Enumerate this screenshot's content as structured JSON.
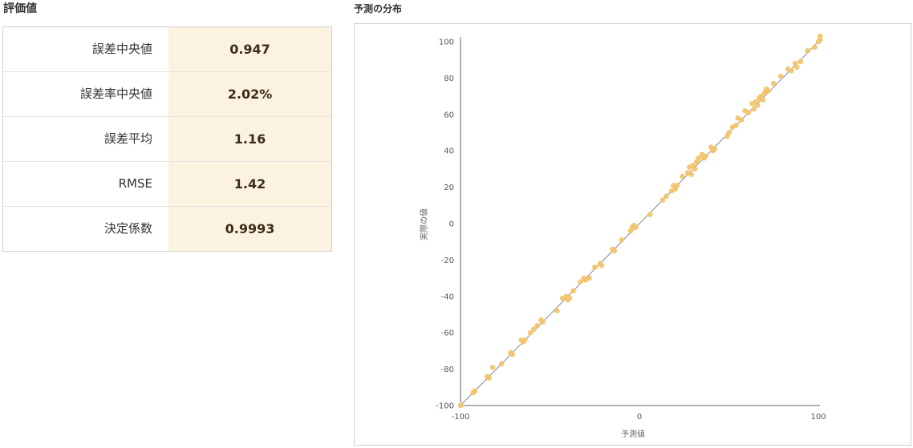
{
  "metrics": {
    "title": "評価値",
    "rows": [
      {
        "label": "誤差中央値",
        "value": "0.947"
      },
      {
        "label": "誤差率中央値",
        "value": "2.02%"
      },
      {
        "label": "誤差平均",
        "value": "1.16"
      },
      {
        "label": "RMSE",
        "value": "1.42"
      },
      {
        "label": "決定係数",
        "value": "0.9993"
      }
    ]
  },
  "colors": {
    "point": "#f2c46d",
    "value_bg": "#fcf2e1",
    "line": "#888888",
    "axis": "#666666"
  },
  "chart_data": {
    "type": "scatter",
    "title": "予測の分布",
    "xlabel": "予測値",
    "ylabel": "実際の値",
    "xlim": [
      -100,
      100
    ],
    "ylim": [
      -100,
      100
    ],
    "xticks": [
      "-100",
      "0",
      "100"
    ],
    "yticks": [
      "100",
      "80",
      "60",
      "40",
      "20",
      "0",
      "-20",
      "-40",
      "-60",
      "-80",
      "-100"
    ],
    "grid": false,
    "reference_line": {
      "from": [
        -100,
        -100
      ],
      "to": [
        100,
        100
      ]
    },
    "series": [
      {
        "points": [
          [
            -100,
            -100
          ],
          [
            -93,
            -93
          ],
          [
            -92,
            -92
          ],
          [
            -85,
            -84
          ],
          [
            -84,
            -85
          ],
          [
            -82,
            -79
          ],
          [
            -77,
            -77
          ],
          [
            -72,
            -71
          ],
          [
            -71,
            -72
          ],
          [
            -66,
            -64
          ],
          [
            -65,
            -65
          ],
          [
            -64,
            -64
          ],
          [
            -61,
            -60
          ],
          [
            -59,
            -58
          ],
          [
            -57,
            -56
          ],
          [
            -55,
            -53
          ],
          [
            -54,
            -54
          ],
          [
            -46,
            -48
          ],
          [
            -43,
            -41
          ],
          [
            -41,
            -40
          ],
          [
            -40,
            -42
          ],
          [
            -39,
            -41
          ],
          [
            -37,
            -37
          ],
          [
            -33,
            -32
          ],
          [
            -31,
            -30
          ],
          [
            -30,
            -31
          ],
          [
            -28,
            -30
          ],
          [
            -25,
            -24
          ],
          [
            -22,
            -22
          ],
          [
            -21,
            -23
          ],
          [
            -15,
            -14
          ],
          [
            -14,
            -15
          ],
          [
            -10,
            -9
          ],
          [
            -5,
            -4
          ],
          [
            -4,
            -2
          ],
          [
            -3,
            -1
          ],
          [
            -2,
            -2
          ],
          [
            6,
            5
          ],
          [
            13,
            13
          ],
          [
            15,
            15
          ],
          [
            18,
            18
          ],
          [
            19,
            21
          ],
          [
            20,
            19
          ],
          [
            21,
            21
          ],
          [
            24,
            26
          ],
          [
            27,
            28
          ],
          [
            28,
            31
          ],
          [
            29,
            27
          ],
          [
            30,
            32
          ],
          [
            31,
            30
          ],
          [
            32,
            34
          ],
          [
            33,
            36
          ],
          [
            35,
            38
          ],
          [
            36,
            36
          ],
          [
            37,
            37
          ],
          [
            40,
            42
          ],
          [
            41,
            40
          ],
          [
            42,
            41
          ],
          [
            49,
            48
          ],
          [
            50,
            50
          ],
          [
            52,
            53
          ],
          [
            54,
            54
          ],
          [
            55,
            58
          ],
          [
            57,
            57
          ],
          [
            59,
            62
          ],
          [
            61,
            61
          ],
          [
            63,
            66
          ],
          [
            64,
            63
          ],
          [
            65,
            67
          ],
          [
            66,
            65
          ],
          [
            67,
            69
          ],
          [
            68,
            70
          ],
          [
            69,
            68
          ],
          [
            70,
            72
          ],
          [
            71,
            74
          ],
          [
            72,
            73
          ],
          [
            75,
            77
          ],
          [
            79,
            81
          ],
          [
            83,
            85
          ],
          [
            85,
            84
          ],
          [
            87,
            88
          ],
          [
            88,
            86
          ],
          [
            90,
            89
          ],
          [
            94,
            95
          ],
          [
            98,
            97
          ],
          [
            100,
            100
          ],
          [
            101,
            101
          ],
          [
            101,
            103
          ]
        ]
      }
    ]
  }
}
